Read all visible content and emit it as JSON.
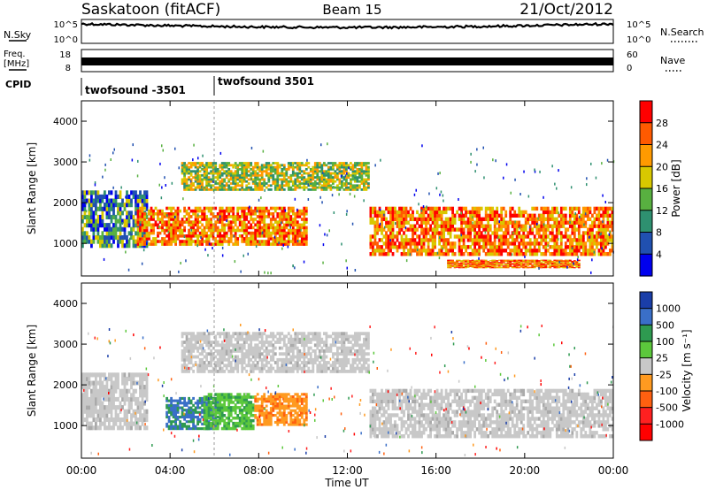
{
  "header": {
    "station": "Saskatoon (fitACF)",
    "beam": "Beam 15",
    "date": "21/Oct/2012"
  },
  "top_panels": {
    "nsky_label": "N.Sky",
    "nsky_tick_hi": "10^5",
    "nsky_tick_lo": "10^0",
    "nsearch_label": "N.Search",
    "nsearch_tick_hi": "10^5",
    "nsearch_tick_lo": "10^0",
    "freq_label": "Freq.",
    "freq_unit": "[MHz]",
    "freq_tick_hi": "18",
    "freq_tick_lo": "8",
    "nave_label": "Nave",
    "nave_tick_hi": "60",
    "nave_tick_lo": "0",
    "cpid_label": "CPID",
    "cpid_modes": [
      "twofsound -3501",
      "twofsound 3501"
    ],
    "cpid_switch_time": "06:00"
  },
  "chart_data": [
    {
      "type": "heatmap",
      "name": "power",
      "xlabel": "Time UT",
      "ylabel": "Slant Range [km]",
      "ylim": [
        200,
        4500
      ],
      "yticks": [
        "1000",
        "2000",
        "3000",
        "4000"
      ],
      "xticks": [
        "00:00",
        "04:00",
        "08:00",
        "12:00",
        "16:00",
        "20:00",
        "00:00"
      ],
      "colorbar": {
        "label": "Power [dB]",
        "ticks": [
          "28",
          "24",
          "20",
          "16",
          "12",
          "8",
          "4"
        ],
        "colors": [
          "#ff0000",
          "#ff5a00",
          "#ff9a00",
          "#d8c800",
          "#58b040",
          "#2e9070",
          "#2050b0",
          "#0000ee"
        ]
      },
      "regions": [
        {
          "t0": 0.0,
          "t1": 3.0,
          "r0": 900,
          "r1": 2300,
          "level": "mixed"
        },
        {
          "t0": 2.5,
          "t1": 10.2,
          "r0": 950,
          "r1": 1900,
          "level": "high"
        },
        {
          "t0": 4.5,
          "t1": 13.0,
          "r0": 2300,
          "r1": 3000,
          "level": "mid"
        },
        {
          "t0": 13.0,
          "t1": 24.0,
          "r0": 700,
          "r1": 1900,
          "level": "high"
        },
        {
          "t0": 16.5,
          "t1": 22.5,
          "r0": 400,
          "r1": 600,
          "level": "high"
        }
      ]
    },
    {
      "type": "heatmap",
      "name": "velocity",
      "xlabel": "Time UT",
      "ylabel": "Slant Range [km]",
      "ylim": [
        200,
        4500
      ],
      "yticks": [
        "1000",
        "2000",
        "3000",
        "4000"
      ],
      "xticks": [
        "00:00",
        "04:00",
        "08:00",
        "12:00",
        "16:00",
        "20:00",
        "00:00"
      ],
      "colorbar": {
        "label": "Velocity [m s⁻¹]",
        "ticks": [
          "1000",
          "500",
          "100",
          "25",
          "-25",
          "-100",
          "-500",
          "-1000"
        ],
        "colors": [
          "#1a3ea8",
          "#3a6fc8",
          "#2e9a50",
          "#5cc83c",
          "#c8c8c8",
          "#ff9a20",
          "#ff6010",
          "#ff2020",
          "#ff0000"
        ]
      },
      "regions": [
        {
          "t0": 0.0,
          "t1": 3.0,
          "r0": 900,
          "r1": 2300,
          "level": "grey"
        },
        {
          "t0": 3.8,
          "t1": 6.2,
          "r0": 900,
          "r1": 1700,
          "level": "blue"
        },
        {
          "t0": 5.5,
          "t1": 7.8,
          "r0": 900,
          "r1": 1800,
          "level": "green"
        },
        {
          "t0": 7.8,
          "t1": 10.2,
          "r0": 1000,
          "r1": 1800,
          "level": "orange"
        },
        {
          "t0": 4.5,
          "t1": 13.0,
          "r0": 2300,
          "r1": 3300,
          "level": "grey"
        },
        {
          "t0": 13.0,
          "t1": 24.0,
          "r0": 700,
          "r1": 1900,
          "level": "grey"
        }
      ]
    }
  ]
}
